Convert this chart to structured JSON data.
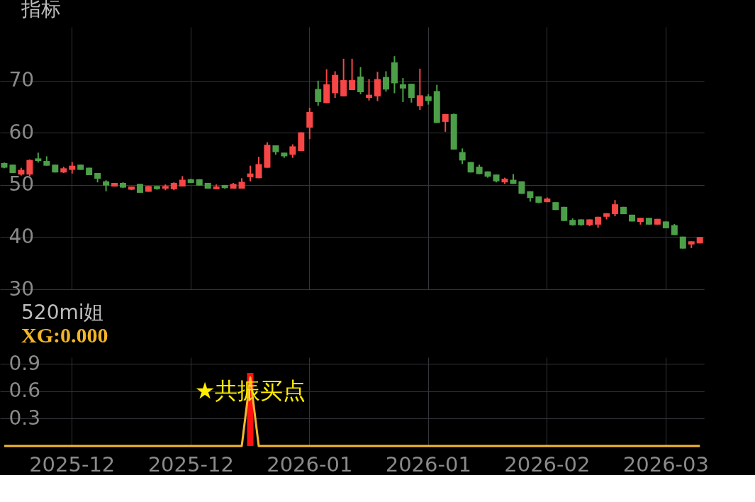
{
  "chart_data": [
    {
      "type": "candlestick",
      "title": "指标",
      "categories": [
        null,
        null,
        null,
        null,
        null,
        null,
        null,
        null,
        "2025-12",
        null,
        null,
        null,
        null,
        null,
        null,
        null,
        null,
        null,
        null,
        null,
        null,
        null,
        "2025-12",
        null,
        null,
        null,
        null,
        null,
        null,
        null,
        null,
        null,
        null,
        null,
        null,
        null,
        "2026-01",
        null,
        null,
        null,
        null,
        null,
        null,
        null,
        null,
        null,
        null,
        null,
        null,
        null,
        "2026-01",
        null,
        null,
        null,
        null,
        null,
        null,
        null,
        null,
        null,
        null,
        null,
        null,
        null,
        "2026-02",
        null,
        null,
        null,
        null,
        null,
        null,
        null,
        null,
        null,
        null,
        null,
        null,
        null,
        "2026-03",
        null,
        null,
        null,
        null
      ],
      "ohlc": [
        [
          54.2,
          54.3,
          53.2,
          53.3
        ],
        [
          53.9,
          53.9,
          52.3,
          52.3
        ],
        [
          52.0,
          53.3,
          51.8,
          52.9
        ],
        [
          52.0,
          54.9,
          51.7,
          54.8
        ],
        [
          55.1,
          56.2,
          54.3,
          54.6
        ],
        [
          54.6,
          55.5,
          53.7,
          53.7
        ],
        [
          53.9,
          53.9,
          52.4,
          52.4
        ],
        [
          52.4,
          53.5,
          52.3,
          53.2
        ],
        [
          52.9,
          54.4,
          52.2,
          53.7
        ],
        [
          53.9,
          53.9,
          52.9,
          52.9
        ],
        [
          53.3,
          53.3,
          51.9,
          51.9
        ],
        [
          52.3,
          52.3,
          50.5,
          51.2
        ],
        [
          50.7,
          50.9,
          48.8,
          49.9
        ],
        [
          49.7,
          50.4,
          49.7,
          50.4
        ],
        [
          50.4,
          50.5,
          49.4,
          49.5
        ],
        [
          49.1,
          49.7,
          49.0,
          49.7
        ],
        [
          50.2,
          50.2,
          48.5,
          48.5
        ],
        [
          48.7,
          49.8,
          48.7,
          49.8
        ],
        [
          49.8,
          49.8,
          49.1,
          49.2
        ],
        [
          49.3,
          50.1,
          49.0,
          49.8
        ],
        [
          49.2,
          50.5,
          49.0,
          50.4
        ],
        [
          49.7,
          51.7,
          49.7,
          51.0
        ],
        [
          51.1,
          51.2,
          50.4,
          50.4
        ],
        [
          51.1,
          51.1,
          49.9,
          49.9
        ],
        [
          50.4,
          50.4,
          49.3,
          49.3
        ],
        [
          49.2,
          50.1,
          49.2,
          49.7
        ],
        [
          50.0,
          50.0,
          49.3,
          49.4
        ],
        [
          49.3,
          50.4,
          49.3,
          50.2
        ],
        [
          49.3,
          51.3,
          49.3,
          50.6
        ],
        [
          51.5,
          53.7,
          50.7,
          52.2
        ],
        [
          51.3,
          55.4,
          51.3,
          54.0
        ],
        [
          53.3,
          58.2,
          53.3,
          57.7
        ],
        [
          57.6,
          57.6,
          55.8,
          56.3
        ],
        [
          56.2,
          56.2,
          55.2,
          55.5
        ],
        [
          55.8,
          57.8,
          55.2,
          57.4
        ],
        [
          56.5,
          60.1,
          56.5,
          60.1
        ],
        [
          61.0,
          64.8,
          58.8,
          64.0
        ],
        [
          68.4,
          70.0,
          65.2,
          65.9
        ],
        [
          65.7,
          72.2,
          65.7,
          69.3
        ],
        [
          67.6,
          71.8,
          66.7,
          71.1
        ],
        [
          67.0,
          74.2,
          67.0,
          70.1
        ],
        [
          68.2,
          74.2,
          68.2,
          70.1
        ],
        [
          70.8,
          72.6,
          67.4,
          67.8
        ],
        [
          66.7,
          70.3,
          66.2,
          67.3
        ],
        [
          67.0,
          71.7,
          66.1,
          70.3
        ],
        [
          70.7,
          71.8,
          67.9,
          68.3
        ],
        [
          73.5,
          74.7,
          67.6,
          69.5
        ],
        [
          69.3,
          70.5,
          65.9,
          68.5
        ],
        [
          69.4,
          69.4,
          65.8,
          66.7
        ],
        [
          65.1,
          72.3,
          64.4,
          67.2
        ],
        [
          67.0,
          67.4,
          65.4,
          66.1
        ],
        [
          68.0,
          69.2,
          61.9,
          61.9
        ],
        [
          62.1,
          63.6,
          60.2,
          63.6
        ],
        [
          63.6,
          63.7,
          56.8,
          56.8
        ],
        [
          56.3,
          57.0,
          54.0,
          54.7
        ],
        [
          54.4,
          54.4,
          52.4,
          52.4
        ],
        [
          53.5,
          53.9,
          52.1,
          52.1
        ],
        [
          52.6,
          52.6,
          51.4,
          51.6
        ],
        [
          52.0,
          52.0,
          50.5,
          50.7
        ],
        [
          50.5,
          51.4,
          50.2,
          51.2
        ],
        [
          51.0,
          52.1,
          50.2,
          50.2
        ],
        [
          50.7,
          50.7,
          48.3,
          48.3
        ],
        [
          48.8,
          48.8,
          46.8,
          47.5
        ],
        [
          47.8,
          47.8,
          46.5,
          46.6
        ],
        [
          46.7,
          47.6,
          46.7,
          47.4
        ],
        [
          46.7,
          46.7,
          45.2,
          45.2
        ],
        [
          45.8,
          45.8,
          43.1,
          43.1
        ],
        [
          43.3,
          43.6,
          42.2,
          42.3
        ],
        [
          43.4,
          43.4,
          42.2,
          42.3
        ],
        [
          42.3,
          43.4,
          42.1,
          43.4
        ],
        [
          42.4,
          43.9,
          41.8,
          43.9
        ],
        [
          43.9,
          44.6,
          43.4,
          44.6
        ],
        [
          44.4,
          47.1,
          44.0,
          46.3
        ],
        [
          45.8,
          45.8,
          44.4,
          44.4
        ],
        [
          44.3,
          44.3,
          43.0,
          43.0
        ],
        [
          42.9,
          43.7,
          42.4,
          43.7
        ],
        [
          43.7,
          43.7,
          42.4,
          42.4
        ],
        [
          42.4,
          43.5,
          42.4,
          43.5
        ],
        [
          43.0,
          43.0,
          41.7,
          41.7
        ],
        [
          42.3,
          42.5,
          40.4,
          40.4
        ],
        [
          40.1,
          40.1,
          37.8,
          37.8
        ],
        [
          38.6,
          39.2,
          37.9,
          39.2
        ],
        [
          38.8,
          40.0,
          38.8,
          40.0
        ]
      ],
      "colors": [
        "#4c9f48",
        "#4c9f48",
        "#f74646",
        "#f74646",
        "#4c9f48",
        "#4c9f48",
        "#4c9f48",
        "#f74646",
        "#f74646",
        "#4c9f48",
        "#4c9f48",
        "#4c9f48",
        "#4c9f48",
        "#f74646",
        "#4c9f48",
        "#f74646",
        "#4c9f48",
        "#f74646",
        "#4c9f48",
        "#f74646",
        "#f74646",
        "#f74646",
        "#4c9f48",
        "#4c9f48",
        "#4c9f48",
        "#f74646",
        "#4c9f48",
        "#f74646",
        "#f74646",
        "#f74646",
        "#f74646",
        "#f74646",
        "#4c9f48",
        "#4c9f48",
        "#f74646",
        "#f74646",
        "#f74646",
        "#4c9f48",
        "#f74646",
        "#f74646",
        "#f74646",
        "#f74646",
        "#4c9f48",
        "#f74646",
        "#f74646",
        "#4c9f48",
        "#4c9f48",
        "#4c9f48",
        "#4c9f48",
        "#f74646",
        "#4c9f48",
        "#4c9f48",
        "#f74646",
        "#4c9f48",
        "#4c9f48",
        "#4c9f48",
        "#4c9f48",
        "#4c9f48",
        "#4c9f48",
        "#f74646",
        "#4c9f48",
        "#4c9f48",
        "#4c9f48",
        "#4c9f48",
        "#f74646",
        "#4c9f48",
        "#4c9f48",
        "#4c9f48",
        "#4c9f48",
        "#f74646",
        "#f74646",
        "#f74646",
        "#f74646",
        "#4c9f48",
        "#4c9f48",
        "#f74646",
        "#4c9f48",
        "#f74646",
        "#4c9f48",
        "#4c9f48",
        "#4c9f48",
        "#f74646",
        "#f74646"
      ],
      "ylim": [
        30,
        80.3
      ],
      "yticks": [
        30,
        40,
        50,
        60,
        70
      ],
      "tick_labels": "y",
      "grid": true
    },
    {
      "type": "line",
      "title": "520mi姐",
      "subtitle": "XG:0.000",
      "categories": [
        null,
        null,
        null,
        null,
        null,
        null,
        null,
        null,
        "2025-12",
        null,
        null,
        null,
        null,
        null,
        null,
        null,
        null,
        null,
        null,
        null,
        null,
        null,
        "2025-12",
        null,
        null,
        null,
        null,
        null,
        null,
        null,
        null,
        null,
        null,
        null,
        null,
        null,
        "2026-01",
        null,
        null,
        null,
        null,
        null,
        null,
        null,
        null,
        null,
        null,
        null,
        null,
        null,
        "2026-01",
        null,
        null,
        null,
        null,
        null,
        null,
        null,
        null,
        null,
        null,
        null,
        null,
        null,
        "2026-02",
        null,
        null,
        null,
        null,
        null,
        null,
        null,
        null,
        null,
        null,
        null,
        null,
        null,
        "2026-03",
        null,
        null,
        null,
        null
      ],
      "series": [
        {
          "type": "line",
          "color": "#f5b82e",
          "values": [
            0,
            0,
            0,
            0,
            0,
            0,
            0,
            0,
            0,
            0,
            0,
            0,
            0,
            0,
            0,
            0,
            0,
            0,
            0,
            0,
            0,
            0,
            0,
            0,
            0,
            0,
            0,
            0,
            0,
            0.75,
            0,
            0,
            0,
            0,
            0,
            0,
            0,
            0,
            0,
            0,
            0,
            0,
            0,
            0,
            0,
            0,
            0,
            0,
            0,
            0,
            0,
            0,
            0,
            0,
            0,
            0,
            0,
            0,
            0,
            0,
            0,
            0,
            0,
            0,
            0,
            0,
            0,
            0,
            0,
            0,
            0,
            0,
            0,
            0,
            0,
            0,
            0,
            0,
            0,
            0,
            0,
            0,
            0
          ]
        },
        {
          "type": "bar",
          "color": "#ff1010",
          "values": [
            null,
            null,
            null,
            null,
            null,
            null,
            null,
            null,
            null,
            null,
            null,
            null,
            null,
            null,
            null,
            null,
            null,
            null,
            null,
            null,
            null,
            null,
            null,
            null,
            null,
            null,
            null,
            null,
            null,
            0.8,
            null,
            null,
            null,
            null,
            null,
            null,
            null,
            null,
            null,
            null,
            null,
            null,
            null,
            null,
            null,
            null,
            null,
            null,
            null,
            null,
            null,
            null,
            null,
            null,
            null,
            null,
            null,
            null,
            null,
            null,
            null,
            null,
            null,
            null,
            null,
            null,
            null,
            null,
            null,
            null,
            null,
            null,
            null,
            null,
            null,
            null,
            null,
            null,
            null,
            null,
            null,
            null,
            null
          ]
        }
      ],
      "annotations": [
        {
          "text": "★共振买点",
          "y": 0.6
        }
      ],
      "ylim": [
        0,
        0.97
      ],
      "yticks": [
        0.3,
        0.6,
        0.9
      ],
      "grid": true
    }
  ]
}
